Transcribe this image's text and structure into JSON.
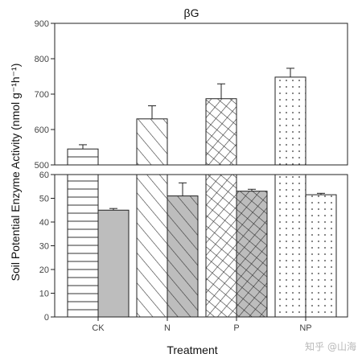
{
  "watermark": "知乎 @山海",
  "chart_data": {
    "type": "bar",
    "title": "βG",
    "xlabel": "Treatment",
    "ylabel": "Soil Potential Enzyme Activity (nmol g⁻¹h⁻¹)",
    "categories": [
      "CK",
      "N",
      "P",
      "NP"
    ],
    "ylim_upper": [
      500,
      900
    ],
    "ylim_lower": [
      0,
      60
    ],
    "yticks_upper": [
      "500",
      "600",
      "700",
      "800",
      "900"
    ],
    "yticks_lower": [
      "0",
      "10",
      "20",
      "30",
      "40",
      "50",
      "60"
    ],
    "series": [
      {
        "values": [
          545,
          630,
          687,
          748
        ],
        "errors": [
          12,
          37,
          42,
          25
        ]
      },
      {
        "values": [
          45,
          51,
          53,
          51.5
        ],
        "errors": [
          0.7,
          5.5,
          0.8,
          0.6
        ]
      }
    ],
    "grid": false,
    "legend": "none"
  }
}
